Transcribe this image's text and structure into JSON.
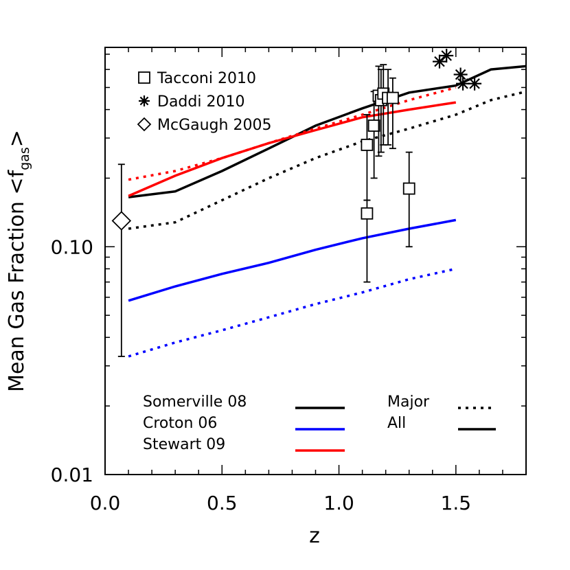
{
  "chart_data": {
    "type": "line",
    "xlabel": "z",
    "ylabel": "Mean Gas Fraction <f",
    "ylabel_sub": "gas",
    "ylabel_close": ">",
    "xlim": [
      0.0,
      1.8
    ],
    "ylim": [
      0.01,
      0.75
    ],
    "yscale": "log",
    "x_ticks": [
      {
        "value": 0.0,
        "label": "0.0"
      },
      {
        "value": 0.5,
        "label": "0.5"
      },
      {
        "value": 1.0,
        "label": "1.0"
      },
      {
        "value": 1.5,
        "label": "1.5"
      }
    ],
    "y_ticks": [
      {
        "value": 0.01,
        "label": "0.01"
      },
      {
        "value": 0.1,
        "label": "0.10"
      }
    ],
    "series": [
      {
        "name": "Somerville 08",
        "kind": "All",
        "color": "#000000",
        "style": "solid",
        "x": [
          0.1,
          0.3,
          0.5,
          0.7,
          0.9,
          1.1,
          1.3,
          1.5,
          1.65,
          1.8
        ],
        "y": [
          0.165,
          0.175,
          0.215,
          0.27,
          0.34,
          0.405,
          0.475,
          0.51,
          0.6,
          0.62
        ]
      },
      {
        "name": "Somerville 08",
        "kind": "Major",
        "color": "#000000",
        "style": "dotted",
        "x": [
          0.1,
          0.3,
          0.5,
          0.7,
          0.9,
          1.1,
          1.3,
          1.5,
          1.65,
          1.8
        ],
        "y": [
          0.12,
          0.128,
          0.16,
          0.2,
          0.245,
          0.29,
          0.33,
          0.38,
          0.44,
          0.48
        ]
      },
      {
        "name": "Croton 06",
        "kind": "All",
        "color": "#0000ff",
        "style": "solid",
        "x": [
          0.1,
          0.3,
          0.5,
          0.7,
          0.9,
          1.1,
          1.3,
          1.5
        ],
        "y": [
          0.058,
          0.067,
          0.076,
          0.085,
          0.097,
          0.109,
          0.12,
          0.131
        ]
      },
      {
        "name": "Croton 06",
        "kind": "Major",
        "color": "#0000ff",
        "style": "dotted",
        "x": [
          0.1,
          0.3,
          0.5,
          0.7,
          0.9,
          1.1,
          1.3,
          1.5
        ],
        "y": [
          0.033,
          0.038,
          0.043,
          0.049,
          0.056,
          0.063,
          0.072,
          0.08
        ]
      },
      {
        "name": "Stewart 09",
        "kind": "All",
        "color": "#ff0000",
        "style": "solid",
        "x": [
          0.1,
          0.3,
          0.5,
          0.7,
          0.9,
          1.1,
          1.3,
          1.5
        ],
        "y": [
          0.167,
          0.205,
          0.245,
          0.285,
          0.325,
          0.37,
          0.4,
          0.43
        ]
      },
      {
        "name": "Stewart 09",
        "kind": "Major",
        "color": "#ff0000",
        "style": "dotted",
        "x": [
          0.1,
          0.3,
          0.5,
          0.7,
          0.9,
          1.1,
          1.3,
          1.5
        ],
        "y": [
          0.197,
          0.215,
          0.245,
          0.285,
          0.33,
          0.38,
          0.44,
          0.5
        ]
      }
    ],
    "observations": [
      {
        "name": "Tacconi 2010",
        "marker": "square",
        "points": [
          {
            "x": 1.12,
            "y": 0.14,
            "ylo": 0.07,
            "yhi": 0.16
          },
          {
            "x": 1.12,
            "y": 0.28,
            "ylo": 0.16,
            "yhi": 0.38
          },
          {
            "x": 1.15,
            "y": 0.34,
            "ylo": 0.2,
            "yhi": 0.48
          },
          {
            "x": 1.17,
            "y": 0.46,
            "ylo": 0.25,
            "yhi": 0.62
          },
          {
            "x": 1.18,
            "y": 0.44,
            "ylo": 0.26,
            "yhi": 0.6
          },
          {
            "x": 1.19,
            "y": 0.47,
            "ylo": 0.28,
            "yhi": 0.63
          },
          {
            "x": 1.21,
            "y": 0.45,
            "ylo": 0.28,
            "yhi": 0.6
          },
          {
            "x": 1.23,
            "y": 0.45,
            "ylo": 0.27,
            "yhi": 0.55
          },
          {
            "x": 1.3,
            "y": 0.18,
            "ylo": 0.1,
            "yhi": 0.26
          }
        ]
      },
      {
        "name": "Daddi 2010",
        "marker": "asterisk",
        "points": [
          {
            "x": 1.43,
            "y": 0.65
          },
          {
            "x": 1.46,
            "y": 0.69
          },
          {
            "x": 1.52,
            "y": 0.57
          },
          {
            "x": 1.53,
            "y": 0.52
          },
          {
            "x": 1.58,
            "y": 0.52
          }
        ]
      },
      {
        "name": "McGaugh 2005",
        "marker": "diamond",
        "points": [
          {
            "x": 0.07,
            "y": 0.13,
            "ylo": 0.033,
            "yhi": 0.23
          }
        ]
      }
    ],
    "legend_top": [
      "Tacconi 2010",
      "Daddi 2010",
      "McGaugh 2005"
    ],
    "legend_models": [
      {
        "label": "Somerville 08",
        "color": "#000000"
      },
      {
        "label": "Croton 06",
        "color": "#0000ff"
      },
      {
        "label": "Stewart 09",
        "color": "#ff0000"
      }
    ],
    "legend_styles": [
      {
        "label": "Major",
        "style": "dotted"
      },
      {
        "label": "All",
        "style": "solid"
      }
    ],
    "grid": false
  }
}
